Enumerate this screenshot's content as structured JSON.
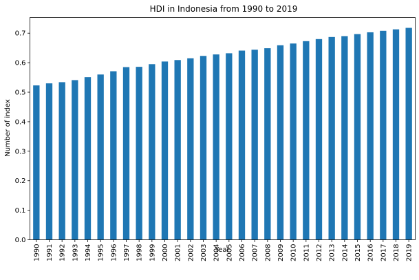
{
  "chart_data": {
    "type": "bar",
    "title": "HDI in Indonesia from 1990 to 2019",
    "xlabel": "Year",
    "ylabel": "Number of index",
    "categories": [
      "1990",
      "1991",
      "1992",
      "1993",
      "1994",
      "1995",
      "1996",
      "1997",
      "1998",
      "1999",
      "2000",
      "2001",
      "2002",
      "2003",
      "2004",
      "2005",
      "2006",
      "2007",
      "2008",
      "2009",
      "2010",
      "2011",
      "2012",
      "2013",
      "2014",
      "2015",
      "2016",
      "2017",
      "2018",
      "2019"
    ],
    "values": [
      0.523,
      0.53,
      0.534,
      0.541,
      0.551,
      0.56,
      0.571,
      0.585,
      0.586,
      0.595,
      0.604,
      0.609,
      0.615,
      0.623,
      0.628,
      0.632,
      0.641,
      0.644,
      0.649,
      0.659,
      0.665,
      0.673,
      0.68,
      0.687,
      0.69,
      0.697,
      0.703,
      0.708,
      0.713,
      0.718
    ],
    "ylim": [
      0,
      0.753
    ],
    "yticks": [
      "0.0",
      "0.1",
      "0.2",
      "0.3",
      "0.4",
      "0.5",
      "0.6",
      "0.7"
    ],
    "grid": false,
    "legend": "none",
    "bar_color": "#1f77b4"
  }
}
